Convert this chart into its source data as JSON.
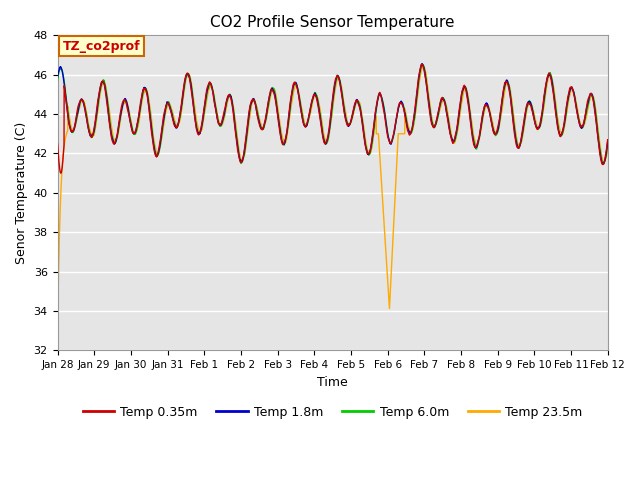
{
  "title": "CO2 Profile Sensor Temperature",
  "xlabel": "Time",
  "ylabel": "Senor Temperature (C)",
  "ylim": [
    32,
    48
  ],
  "yticks": [
    32,
    34,
    36,
    38,
    40,
    42,
    44,
    46,
    48
  ],
  "colors": {
    "Temp 0.35m": "#cc0000",
    "Temp 1.8m": "#0000cc",
    "Temp 6.0m": "#00cc00",
    "Temp 23.5m": "#ffaa00"
  },
  "legend_label": "TZ_co2prof",
  "legend_box_color": "#ffffcc",
  "legend_box_edge": "#cc6600",
  "background_color": "#e5e5e5",
  "xtick_labels": [
    "Jan 28",
    "Jan 29",
    "Jan 30",
    "Jan 31",
    "Feb 1",
    "Feb 2",
    "Feb 3",
    "Feb 4",
    "Feb 5",
    "Feb 6",
    "Feb 7",
    "Feb 8",
    "Feb 9",
    "Feb 10",
    "Feb 11",
    "Feb 12"
  ],
  "num_points": 4320
}
